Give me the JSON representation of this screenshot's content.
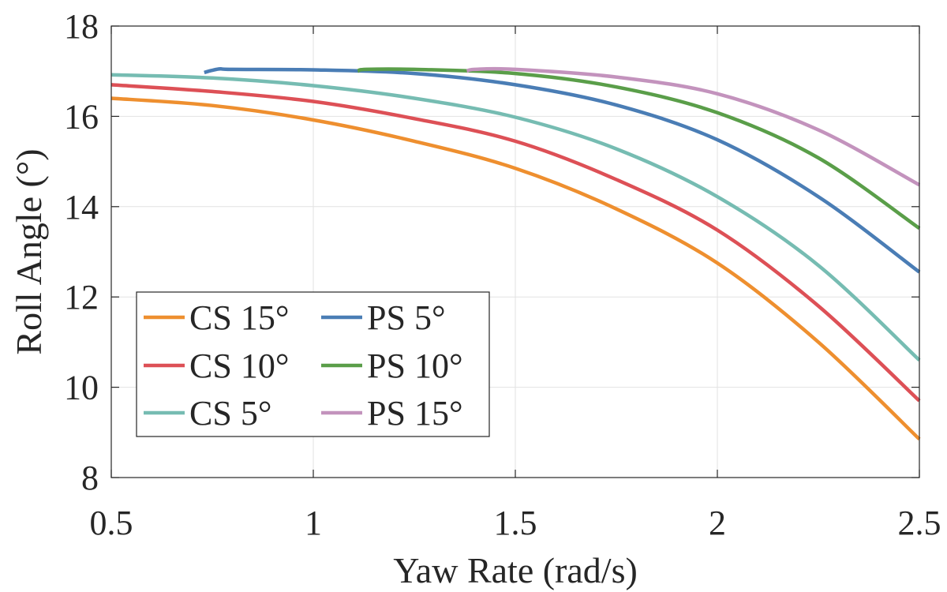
{
  "chart_data": {
    "type": "line",
    "title": "",
    "xlabel": "Yaw Rate (rad/s)",
    "ylabel": "Roll Angle (°)",
    "xlim": [
      0.5,
      2.5
    ],
    "ylim": [
      8,
      18
    ],
    "xticks": [
      "0.5",
      "1",
      "1.5",
      "2",
      "2.5"
    ],
    "yticks": [
      "8",
      "10",
      "12",
      "14",
      "16",
      "18"
    ],
    "grid": true,
    "legend_position": "bottom-left",
    "series": [
      {
        "name": "CS 15°",
        "color": "#EE8F2F",
        "x": [
          0.5,
          0.75,
          1.0,
          1.25,
          1.5,
          1.75,
          2.0,
          2.25,
          2.5
        ],
        "y": [
          16.4,
          16.24,
          15.92,
          15.45,
          14.85,
          13.95,
          12.75,
          11.0,
          8.85
        ]
      },
      {
        "name": "CS 10°",
        "color": "#DD5056",
        "x": [
          0.5,
          0.75,
          1.0,
          1.25,
          1.5,
          1.75,
          2.0,
          2.25,
          2.5
        ],
        "y": [
          16.7,
          16.55,
          16.33,
          15.95,
          15.45,
          14.6,
          13.48,
          11.8,
          9.7
        ]
      },
      {
        "name": "CS 5°",
        "color": "#76BCB2",
        "x": [
          0.5,
          0.75,
          1.0,
          1.25,
          1.5,
          1.75,
          2.0,
          2.25,
          2.5
        ],
        "y": [
          16.92,
          16.85,
          16.68,
          16.4,
          15.98,
          15.28,
          14.22,
          12.7,
          10.6
        ]
      },
      {
        "name": "PS 5°",
        "color": "#4A7DB5",
        "x": [
          0.73,
          0.75,
          0.77,
          0.8,
          1.0,
          1.25,
          1.5,
          1.75,
          2.0,
          2.25,
          2.5
        ],
        "y": [
          16.97,
          17.02,
          17.05,
          17.04,
          17.03,
          16.95,
          16.7,
          16.25,
          15.48,
          14.22,
          12.55
        ]
      },
      {
        "name": "PS 10°",
        "color": "#5A9E49",
        "x": [
          1.11,
          1.13,
          1.25,
          1.5,
          1.75,
          2.0,
          2.25,
          2.5
        ],
        "y": [
          17.0,
          17.04,
          17.04,
          16.95,
          16.65,
          16.08,
          15.08,
          13.52
        ]
      },
      {
        "name": "PS 15°",
        "color": "#C393BD",
        "x": [
          1.38,
          1.4,
          1.5,
          1.75,
          2.0,
          2.25,
          2.5
        ],
        "y": [
          17.0,
          17.04,
          17.04,
          16.87,
          16.5,
          15.7,
          14.48
        ]
      }
    ],
    "legend_order": [
      0,
      3,
      1,
      4,
      2,
      5
    ]
  }
}
